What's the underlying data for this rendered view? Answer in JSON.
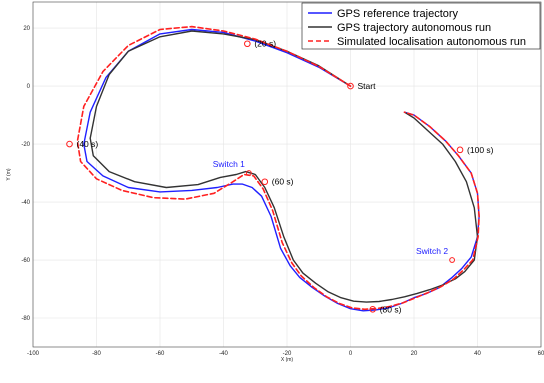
{
  "chart_data": {
    "type": "line",
    "title": "",
    "xlabel": "X (m)",
    "ylabel": "Y (m)",
    "xlim": [
      -100,
      60
    ],
    "ylim": [
      -90,
      29
    ],
    "xticks": [
      -100,
      -80,
      -60,
      -40,
      -20,
      0,
      20,
      40,
      60
    ],
    "yticks": [
      -80,
      -60,
      -40,
      -20,
      0,
      20
    ],
    "grid": true,
    "legend_position": "top-right",
    "legend": [
      {
        "label": "GPS reference trajectory",
        "color": "#1f1fff",
        "style": "solid"
      },
      {
        "label": "GPS trajectory autonomous run",
        "color": "#333333",
        "style": "solid"
      },
      {
        "label": "Simulated localisation autonomous run",
        "color": "#ff2020",
        "style": "dashed"
      }
    ],
    "series": [
      {
        "color": "#2020ff",
        "style": "solid",
        "x": [
          0,
          -10,
          -20,
          -30,
          -40,
          -50,
          -60,
          -70,
          -77,
          -82,
          -84,
          -83,
          -78,
          -70,
          -60,
          -50,
          -42,
          -37,
          -34,
          -31,
          -28,
          -25,
          -22,
          -19,
          -16,
          -12,
          -8,
          -4,
          0,
          4,
          8,
          12,
          16,
          20,
          24,
          28,
          32,
          35,
          38,
          40,
          40.5,
          40,
          38,
          34,
          30,
          25,
          20,
          17
        ],
        "y": [
          0,
          6.5,
          11.5,
          15.5,
          18.5,
          19.5,
          18,
          12,
          3,
          -9,
          -20,
          -26,
          -31,
          -35,
          -36.5,
          -36,
          -35,
          -33.8,
          -33.8,
          -35,
          -38,
          -45,
          -56,
          -62,
          -66,
          -69.5,
          -72.5,
          -75,
          -76.8,
          -77.5,
          -77.2,
          -76.5,
          -75,
          -73,
          -71.5,
          -69.5,
          -66,
          -63,
          -59,
          -52,
          -45,
          -37,
          -30,
          -24,
          -19,
          -14,
          -10,
          -9
        ]
      },
      {
        "color": "#333333",
        "style": "solid",
        "x": [
          0,
          -10,
          -20,
          -30,
          -40,
          -50,
          -60,
          -70,
          -76,
          -80,
          -82,
          -81,
          -76,
          -68,
          -58,
          -48,
          -41,
          -36,
          -33,
          -30,
          -27,
          -24,
          -21,
          -18,
          -15,
          -11,
          -7,
          -3,
          1,
          5,
          9,
          13,
          17,
          21,
          25,
          29,
          33,
          36,
          39,
          40,
          39,
          36.5,
          33,
          29,
          24,
          20,
          17
        ],
        "y": [
          0,
          7,
          12,
          16,
          18,
          19,
          17,
          12,
          4,
          -7,
          -18,
          -24,
          -29.5,
          -33,
          -35,
          -34,
          -31.5,
          -30.5,
          -29.5,
          -30.5,
          -35,
          -42,
          -52,
          -60,
          -64.5,
          -68,
          -71,
          -73,
          -74.2,
          -74.5,
          -74.3,
          -73.6,
          -72.7,
          -71.5,
          -70.2,
          -68.6,
          -66.5,
          -64,
          -60,
          -52,
          -42,
          -33,
          -26,
          -20,
          -15,
          -11,
          -9
        ]
      },
      {
        "color": "#ff2020",
        "style": "dashed",
        "x": [
          0,
          -10,
          -20,
          -30,
          -40,
          -50,
          -60,
          -70,
          -78,
          -84,
          -86,
          -85,
          -80,
          -72,
          -62,
          -52,
          -43,
          -37,
          -33.5,
          -30.5,
          -27.5,
          -24.5,
          -21.5,
          -18.5,
          -15.5,
          -11.5,
          -7.5,
          -3.5,
          0.5,
          4.5,
          8.5,
          12.5,
          16.5,
          20.5,
          24.5,
          28.5,
          32.5,
          35.5,
          38.5,
          40.2,
          40.5,
          40,
          38,
          34,
          30,
          25,
          20,
          17
        ],
        "y": [
          0,
          6.8,
          12,
          16.2,
          19,
          20.5,
          19.5,
          14,
          5,
          -7,
          -19,
          -26,
          -32,
          -36,
          -38.5,
          -39,
          -37,
          -33,
          -30.5,
          -31,
          -35.5,
          -43,
          -54,
          -61,
          -65.5,
          -69.5,
          -72.7,
          -75,
          -76.5,
          -77,
          -76.7,
          -76,
          -74.8,
          -73,
          -71.2,
          -69.2,
          -66.5,
          -63.5,
          -60,
          -52,
          -45,
          -37,
          -30,
          -24,
          -19,
          -14,
          -10,
          -9
        ]
      }
    ],
    "markers": [
      {
        "x": 0,
        "y": 0,
        "label": "Start"
      },
      {
        "x": -32.5,
        "y": 14.6,
        "label": "(20 s)"
      },
      {
        "x": -88.5,
        "y": -20,
        "label": "(40 s)"
      },
      {
        "x": -27,
        "y": -33,
        "label": "(60 s)"
      },
      {
        "x": 7,
        "y": -77,
        "label": "(80 s)"
      },
      {
        "x": 34.5,
        "y": -22,
        "label": "(100 s)"
      }
    ],
    "switches": [
      {
        "x": -32,
        "y": -30,
        "label": "Switch 1",
        "color": "#2020ff"
      },
      {
        "x": 32,
        "y": -60,
        "label": "Switch 2",
        "color": "#2020ff"
      }
    ]
  }
}
